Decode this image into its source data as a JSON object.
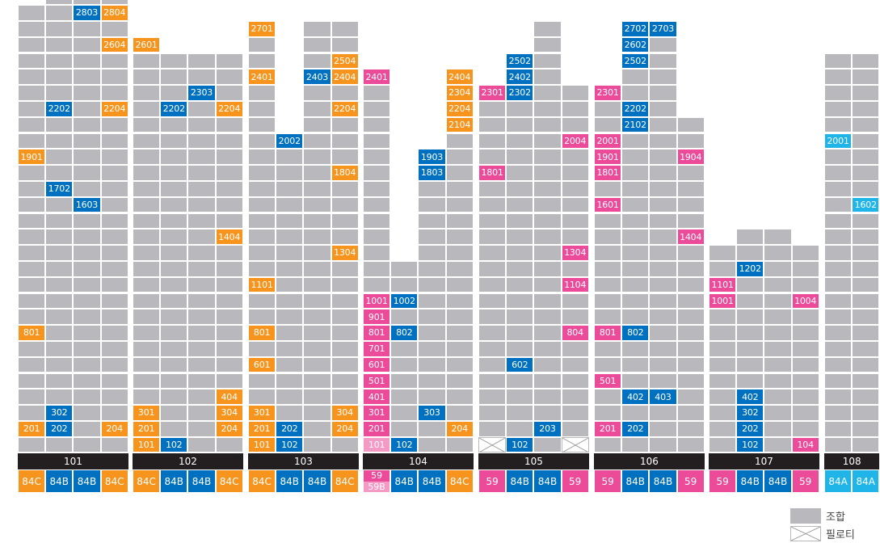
{
  "colors": {
    "gray": "#b9b9bd",
    "orange": "#f7941d",
    "blue": "#0070c0",
    "pink": "#ec4b9a",
    "light_pink": "#f49ac5",
    "cyan": "#1fb5e9",
    "bar": "#231f20"
  },
  "buildings": [
    {
      "id": "101",
      "columns": [
        {
          "floors": 28,
          "type": "84C",
          "units": {
            "1901": "orange",
            "801": "orange",
            "201": "orange"
          }
        },
        {
          "floors": 29,
          "type": "84B",
          "units": {
            "2202": "blue",
            "1702": "blue",
            "302": "blue",
            "202": "blue"
          }
        },
        {
          "floors": 29,
          "type": "84B",
          "units": {
            "2803": "blue",
            "1603": "blue"
          }
        },
        {
          "floors": 29,
          "type": "84C",
          "units": {
            "2804": "orange",
            "2604": "orange",
            "2204": "orange",
            "204": "orange"
          }
        }
      ]
    },
    {
      "id": "102",
      "columns": [
        {
          "floors": 26,
          "type": "84C",
          "units": {
            "2601": "orange",
            "301": "orange",
            "201": "orange",
            "101": "orange"
          }
        },
        {
          "floors": 25,
          "type": "84B",
          "units": {
            "2202": "blue",
            "102": "blue"
          }
        },
        {
          "floors": 25,
          "type": "84B",
          "units": {
            "2303": "blue"
          }
        },
        {
          "floors": 25,
          "type": "84C",
          "units": {
            "2204": "orange",
            "1404": "orange",
            "404": "orange",
            "304": "orange",
            "204": "orange"
          }
        }
      ]
    },
    {
      "id": "103",
      "columns": [
        {
          "floors": 27,
          "type": "84C",
          "units": {
            "2701": "orange",
            "2401": "orange",
            "1101": "orange",
            "801": "orange",
            "601": "orange",
            "301": "orange",
            "201": "orange",
            "101": "orange"
          }
        },
        {
          "floors": 20,
          "type": "84B",
          "units": {
            "2002": "blue",
            "202": "blue",
            "102": "blue"
          }
        },
        {
          "floors": 27,
          "type": "84B",
          "units": {
            "2403": "blue"
          }
        },
        {
          "floors": 27,
          "type": "84C",
          "units": {
            "2504": "orange",
            "2404": "orange",
            "2204": "orange",
            "1804": "orange",
            "1304": "orange",
            "304": "orange",
            "204": "orange"
          }
        }
      ]
    },
    {
      "id": "104",
      "columns": [
        {
          "floors": 24,
          "type": "59/59B",
          "units": {
            "2401": "pink",
            "1001": "pink",
            "901": "pink",
            "801": "pink",
            "701": "pink",
            "601": "pink",
            "501": "pink",
            "401": "pink",
            "301": "pink",
            "201": "pink",
            "101": "light_pink"
          }
        },
        {
          "floors": 12,
          "type": "84B",
          "units": {
            "1002": "blue",
            "802": "blue",
            "102": "blue"
          }
        },
        {
          "floors": 19,
          "type": "84B",
          "units": {
            "1903": "blue",
            "1803": "blue",
            "303": "blue"
          }
        },
        {
          "floors": 24,
          "type": "84C",
          "units": {
            "2404": "orange",
            "2304": "orange",
            "2204": "orange",
            "2104": "orange",
            "204": "orange"
          }
        }
      ]
    },
    {
      "id": "105",
      "columns": [
        {
          "floors": 23,
          "type": "59",
          "piloti": true,
          "units": {
            "2301": "pink",
            "1801": "pink"
          }
        },
        {
          "floors": 25,
          "type": "84B",
          "units": {
            "2502": "blue",
            "2402": "blue",
            "2302": "blue",
            "602": "blue",
            "102": "blue"
          }
        },
        {
          "floors": 27,
          "type": "84B",
          "units": {
            "203": "blue"
          }
        },
        {
          "floors": 23,
          "type": "59",
          "piloti": true,
          "units": {
            "2004": "pink",
            "1304": "pink",
            "1104": "pink",
            "804": "pink"
          }
        }
      ]
    },
    {
      "id": "106",
      "columns": [
        {
          "floors": 23,
          "type": "59",
          "units": {
            "2301": "pink",
            "2001": "pink",
            "1901": "pink",
            "1801": "pink",
            "1601": "pink",
            "801": "pink",
            "501": "pink",
            "201": "pink"
          }
        },
        {
          "floors": 27,
          "type": "84B",
          "units": {
            "2702": "blue",
            "2602": "blue",
            "2502": "blue",
            "2202": "blue",
            "2102": "blue",
            "802": "blue",
            "402": "blue",
            "202": "blue"
          }
        },
        {
          "floors": 27,
          "type": "84B",
          "units": {
            "2703": "blue",
            "403": "blue"
          }
        },
        {
          "floors": 21,
          "type": "59",
          "units": {
            "1904": "pink",
            "1404": "pink"
          }
        }
      ]
    },
    {
      "id": "107",
      "columns": [
        {
          "floors": 13,
          "type": "59",
          "units": {
            "1101": "pink",
            "1001": "pink"
          }
        },
        {
          "floors": 14,
          "type": "84B",
          "units": {
            "1202": "blue",
            "402": "blue",
            "302": "blue",
            "202": "blue",
            "102": "blue"
          }
        },
        {
          "floors": 14,
          "type": "84B",
          "units": {}
        },
        {
          "floors": 13,
          "type": "59",
          "units": {
            "1004": "pink",
            "104": "pink"
          }
        }
      ]
    },
    {
      "id": "108",
      "columns": [
        {
          "floors": 25,
          "type": "84A",
          "units": {
            "2001": "cyan"
          }
        },
        {
          "floors": 25,
          "type": "84A",
          "units": {
            "1602": "cyan"
          }
        }
      ]
    }
  ],
  "legend": {
    "union": "조합",
    "piloti": "필로티"
  }
}
